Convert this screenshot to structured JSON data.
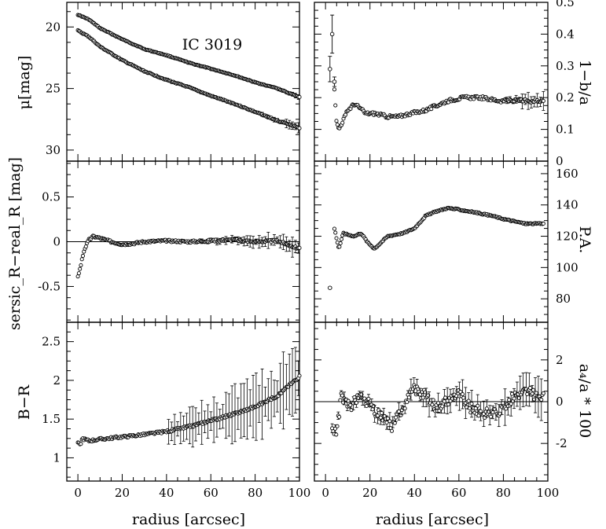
{
  "chart_data": {
    "type": "scatter",
    "figure_annotation": "IC 3019",
    "shared_xlabel": "radius [arcsec]",
    "panels": [
      {
        "id": "mu",
        "column": "left",
        "row": 0,
        "ylabel": "μ[mag]",
        "xlim": [
          -5,
          100
        ],
        "ylim": [
          30.9,
          18.0
        ],
        "y_inverted": true,
        "xticks": [
          0,
          20,
          40,
          60,
          80,
          100
        ],
        "xtick_labels_shown": false,
        "yticks": [
          20,
          25,
          30
        ],
        "ytick_labels": [
          "20",
          "25",
          "30"
        ],
        "series": [
          {
            "profile": [
              [
                0,
                19.0
              ],
              [
                5,
                19.4
              ],
              [
                10,
                20.1
              ],
              [
                20,
                21.0
              ],
              [
                30,
                21.8
              ],
              [
                40,
                22.3
              ],
              [
                50,
                22.9
              ],
              [
                60,
                23.4
              ],
              [
                70,
                23.9
              ],
              [
                80,
                24.5
              ],
              [
                90,
                25.0
              ],
              [
                100,
                25.7
              ]
            ],
            "scatter": 0.03,
            "errors": [
              [
                80,
                100,
                0.15
              ]
            ]
          },
          {
            "profile": [
              [
                0,
                20.3
              ],
              [
                5,
                20.8
              ],
              [
                10,
                21.6
              ],
              [
                20,
                22.7
              ],
              [
                30,
                23.6
              ],
              [
                40,
                24.3
              ],
              [
                50,
                24.9
              ],
              [
                60,
                25.6
              ],
              [
                70,
                26.2
              ],
              [
                80,
                26.9
              ],
              [
                90,
                27.6
              ],
              [
                100,
                28.2
              ]
            ],
            "scatter": 0.04,
            "errors": [
              [
                80,
                100,
                0.3
              ]
            ]
          }
        ]
      },
      {
        "id": "resid",
        "column": "left",
        "row": 1,
        "ylabel": "sersic_R−real_R [mag]",
        "xlim": [
          -5,
          100
        ],
        "ylim": [
          -0.9,
          0.9
        ],
        "xticks": [
          0,
          20,
          40,
          60,
          80,
          100
        ],
        "xtick_labels_shown": false,
        "yticks": [
          -0.5,
          0,
          0.5
        ],
        "ytick_labels": [
          "-0.5",
          "0",
          "0.5"
        ],
        "zero_line": 0,
        "series": [
          {
            "profile": [
              [
                0,
                -0.38
              ],
              [
                1,
                -0.3
              ],
              [
                2,
                -0.18
              ],
              [
                3,
                -0.08
              ],
              [
                5,
                0.02
              ],
              [
                7,
                0.06
              ],
              [
                10,
                0.04
              ],
              [
                15,
                0.0
              ],
              [
                20,
                -0.03
              ],
              [
                25,
                -0.02
              ],
              [
                30,
                0.0
              ],
              [
                40,
                0.01
              ],
              [
                50,
                0.0
              ],
              [
                60,
                0.01
              ],
              [
                70,
                0.02
              ],
              [
                80,
                0.0
              ],
              [
                90,
                0.01
              ],
              [
                100,
                -0.08
              ]
            ],
            "scatter": 0.012,
            "errors": [
              [
                55,
                100,
                0.08
              ]
            ]
          }
        ]
      },
      {
        "id": "color",
        "column": "left",
        "row": 2,
        "ylabel": "B−R",
        "xlim": [
          -5,
          100
        ],
        "ylim": [
          0.7,
          2.75
        ],
        "xticks": [
          0,
          20,
          40,
          60,
          80,
          100
        ],
        "xtick_labels": [
          "0",
          "20",
          "40",
          "60",
          "80",
          "100"
        ],
        "xtick_labels_shown": true,
        "yticks": [
          1,
          1.5,
          2,
          2.5
        ],
        "ytick_labels": [
          "1",
          "1.5",
          "2",
          "2.5"
        ],
        "series": [
          {
            "profile": [
              [
                0,
                1.2
              ],
              [
                1,
                1.16
              ],
              [
                2,
                1.25
              ],
              [
                5,
                1.22
              ],
              [
                10,
                1.24
              ],
              [
                20,
                1.27
              ],
              [
                30,
                1.3
              ],
              [
                40,
                1.34
              ],
              [
                50,
                1.4
              ],
              [
                60,
                1.48
              ],
              [
                70,
                1.56
              ],
              [
                80,
                1.66
              ],
              [
                90,
                1.8
              ],
              [
                100,
                2.05
              ]
            ],
            "scatter": 0.015,
            "errors": [
              [
                40,
                100,
                0.45
              ]
            ]
          }
        ]
      },
      {
        "id": "ellip",
        "column": "right",
        "row": 0,
        "ylabel": "1−b/a",
        "xlim": [
          -5,
          100
        ],
        "ylim": [
          0.0,
          0.5
        ],
        "xticks": [
          0,
          20,
          40,
          60,
          80,
          100
        ],
        "xtick_labels_shown": false,
        "yticks": [
          0,
          0.1,
          0.2,
          0.3,
          0.4,
          0.5
        ],
        "ytick_labels": [
          "0",
          "0.1",
          "0.2",
          "0.3",
          "0.4",
          "0.5"
        ],
        "series": [
          {
            "profile": [
              [
                4,
                0.23
              ],
              [
                5,
                0.12
              ],
              [
                6,
                0.1
              ],
              [
                8,
                0.13
              ],
              [
                10,
                0.16
              ],
              [
                13,
                0.18
              ],
              [
                15,
                0.17
              ],
              [
                18,
                0.15
              ],
              [
                22,
                0.15
              ],
              [
                28,
                0.14
              ],
              [
                33,
                0.14
              ],
              [
                38,
                0.15
              ],
              [
                45,
                0.16
              ],
              [
                55,
                0.19
              ],
              [
                62,
                0.2
              ],
              [
                70,
                0.2
              ],
              [
                78,
                0.19
              ],
              [
                90,
                0.19
              ],
              [
                98,
                0.19
              ]
            ],
            "scatter": 0.005,
            "errors": [
              [
                80,
                100,
                0.03
              ]
            ]
          },
          {
            "points": [
              [
                2,
                0.29
              ],
              [
                3,
                0.4
              ],
              [
                4,
                0.25
              ]
            ],
            "errors": [
              0.04,
              0.06,
              0.015
            ]
          }
        ]
      },
      {
        "id": "pa",
        "column": "right",
        "row": 1,
        "ylabel": "P.A.",
        "xlim": [
          -5,
          100
        ],
        "ylim": [
          65,
          168
        ],
        "xticks": [
          0,
          20,
          40,
          60,
          80,
          100
        ],
        "xtick_labels_shown": false,
        "yticks": [
          80,
          100,
          120,
          140,
          160
        ],
        "ytick_labels": [
          "80",
          "100",
          "120",
          "140",
          "160"
        ],
        "series": [
          {
            "profile": [
              [
                4,
                125
              ],
              [
                6,
                112
              ],
              [
                8,
                122
              ],
              [
                10,
                121
              ],
              [
                13,
                120
              ],
              [
                16,
                122
              ],
              [
                19,
                116
              ],
              [
                22,
                112
              ],
              [
                25,
                116
              ],
              [
                28,
                120
              ],
              [
                35,
                122
              ],
              [
                40,
                125
              ],
              [
                45,
                133
              ],
              [
                50,
                136
              ],
              [
                55,
                138
              ],
              [
                60,
                137
              ],
              [
                68,
                135
              ],
              [
                75,
                133
              ],
              [
                80,
                131
              ],
              [
                90,
                128
              ],
              [
                98,
                128
              ]
            ],
            "scatter": 0.4,
            "errors": []
          },
          {
            "points": [
              [
                2,
                87
              ]
            ],
            "errors": [
              0
            ]
          }
        ]
      },
      {
        "id": "a4",
        "column": "right",
        "row": 2,
        "ylabel": "a₄/a * 100",
        "xlim": [
          -5,
          100
        ],
        "ylim": [
          -3.8,
          3.8
        ],
        "xticks": [
          0,
          20,
          40,
          60,
          80,
          100
        ],
        "xtick_labels": [
          "0",
          "20",
          "40",
          "60",
          "80",
          "100"
        ],
        "xtick_labels_shown": true,
        "yticks": [
          -2,
          0,
          2
        ],
        "ytick_labels": [
          "-2",
          "0",
          "2"
        ],
        "zero_line": 0,
        "series": [
          {
            "profile": [
              [
                3,
                -1.2
              ],
              [
                5,
                -1.5
              ],
              [
                7,
                0.2
              ],
              [
                9,
                0.1
              ],
              [
                12,
                -0.2
              ],
              [
                15,
                0.3
              ],
              [
                18,
                0.1
              ],
              [
                22,
                -0.5
              ],
              [
                26,
                -0.8
              ],
              [
                30,
                -1.2
              ],
              [
                35,
                -0.2
              ],
              [
                40,
                0.6
              ],
              [
                45,
                0.3
              ],
              [
                50,
                -0.3
              ],
              [
                55,
                0.1
              ],
              [
                60,
                0.4
              ],
              [
                65,
                -0.3
              ],
              [
                70,
                -0.5
              ],
              [
                75,
                -0.6
              ],
              [
                80,
                -0.3
              ],
              [
                85,
                0.3
              ],
              [
                90,
                0.5
              ],
              [
                98,
                0.2
              ]
            ],
            "scatter": 0.25,
            "errors": [
              [
                3,
                100,
                0.7
              ]
            ]
          }
        ]
      }
    ]
  }
}
